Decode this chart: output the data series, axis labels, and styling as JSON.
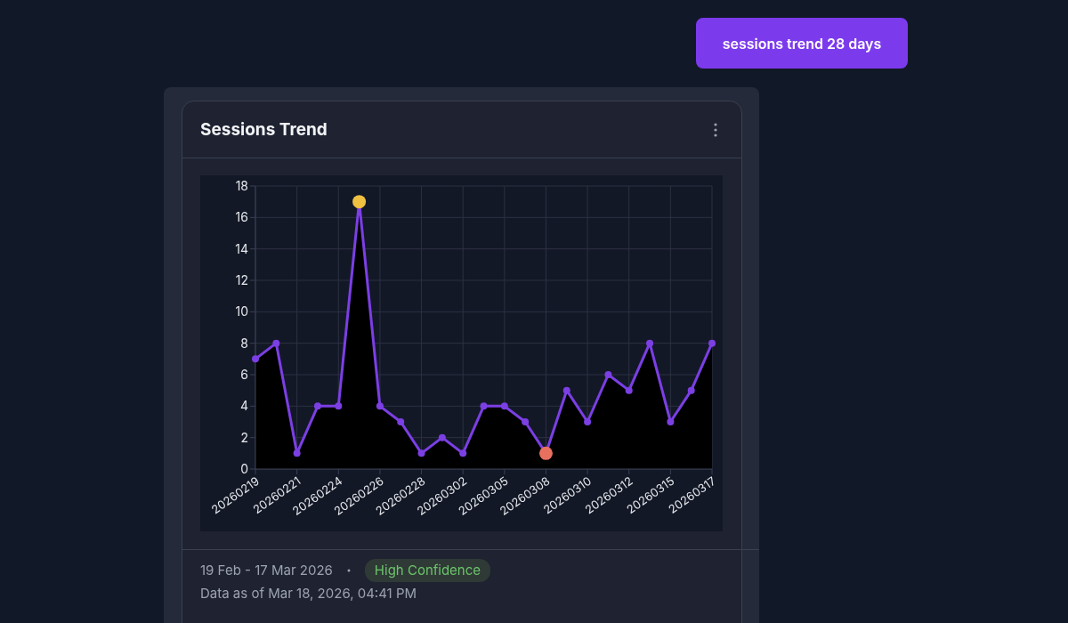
{
  "chart_data": {
    "type": "area",
    "title": "Sessions Trend",
    "categories": [
      "20260219",
      null,
      "20260221",
      null,
      "20260224",
      null,
      "20260226",
      null,
      "20260228",
      null,
      "20260302",
      null,
      "20260305",
      null,
      "20260308",
      null,
      "20260310",
      null,
      "20260312",
      null,
      "20260315",
      null,
      "20260317"
    ],
    "series": [
      {
        "color": "#7b3fe4",
        "values": [
          7,
          8,
          1,
          4,
          4,
          17,
          4,
          3,
          1,
          2,
          1,
          4,
          4,
          3,
          1,
          5,
          3,
          6,
          5,
          8,
          3,
          5,
          8
        ],
        "colors": [
          "#7b3fe4",
          "#7b3fe4",
          "#7b3fe4",
          "#7b3fe4",
          "#7b3fe4",
          "#f0c040",
          "#7b3fe4",
          "#7b3fe4",
          "#7b3fe4",
          "#7b3fe4",
          "#7b3fe4",
          "#7b3fe4",
          "#7b3fe4",
          "#7b3fe4",
          "#e8705f",
          "#7b3fe4",
          "#7b3fe4",
          "#7b3fe4",
          "#7b3fe4",
          "#7b3fe4",
          "#7b3fe4",
          "#7b3fe4",
          "#7b3fe4"
        ]
      }
    ],
    "ylim": [
      0,
      18
    ],
    "yticks": [
      0,
      2,
      4,
      6,
      8,
      10,
      12,
      14,
      16,
      18
    ],
    "grid": true,
    "legend": false,
    "marker": "circle",
    "line_style": "solid",
    "annotations": [
      "sessions trend 28 days",
      "19 Feb - 17 Mar 2026",
      "High Confidence",
      "Data as of Mar 18, 2026, 04:41 PM"
    ]
  }
}
